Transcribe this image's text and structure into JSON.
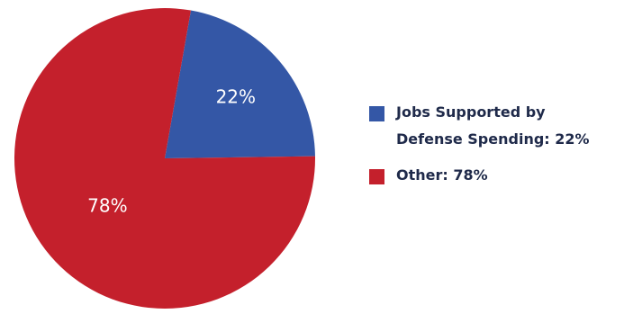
{
  "chart_data": {
    "type": "pie",
    "slices": [
      {
        "label_lines": [
          "Jobs Supported by",
          "Defense Spending: 22%"
        ],
        "value": 22,
        "display": "22%",
        "color": "#3457a6"
      },
      {
        "label_lines": [
          "Other: 78%"
        ],
        "value": 78,
        "display": "78%",
        "color": "#c4202c"
      }
    ],
    "legend_position": "right"
  }
}
